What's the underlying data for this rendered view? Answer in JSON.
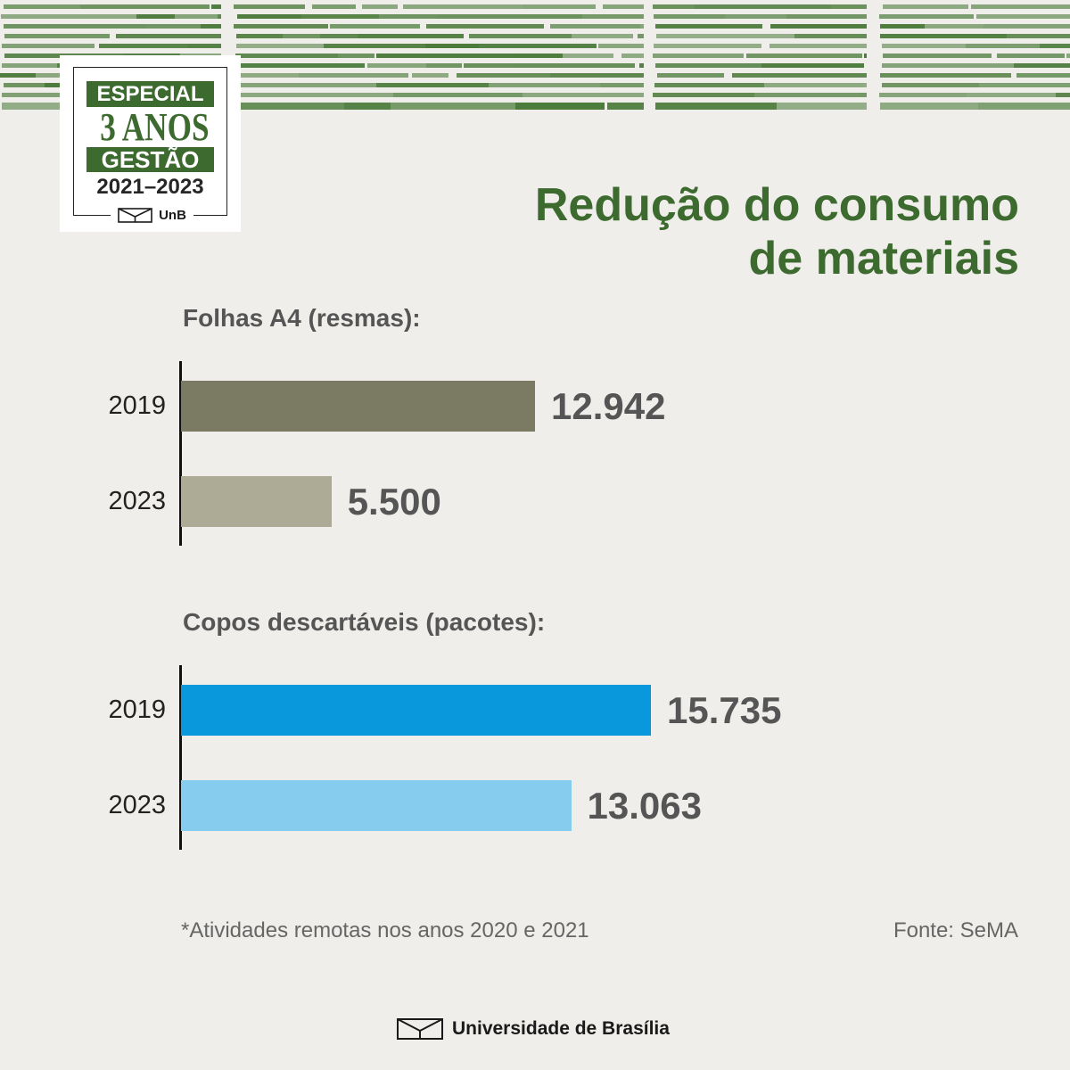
{
  "badge": {
    "label_top": "ESPECIAL",
    "label_big": "3 ANOS",
    "label_bottom": "GESTÃO",
    "years": "2021–2023",
    "logo_text": "UnB",
    "logo_icon": "unb-logo-icon"
  },
  "title": {
    "line1": "Redução do consumo",
    "line2": "de materiais"
  },
  "chart_data": [
    {
      "type": "bar",
      "orientation": "horizontal",
      "title": "Folhas A4 (resmas):",
      "categories": [
        "2019",
        "2023"
      ],
      "values": [
        12942,
        5500
      ],
      "value_labels": [
        "12.942",
        "5.500"
      ],
      "colors": [
        "#7b7a63",
        "#adab95"
      ],
      "grid": false,
      "legend": "none"
    },
    {
      "type": "bar",
      "orientation": "horizontal",
      "title": "Copos descartáveis (pacotes):",
      "categories": [
        "2019",
        "2023"
      ],
      "values": [
        15735,
        13063
      ],
      "value_labels": [
        "15.735",
        "13.063"
      ],
      "colors": [
        "#0a98dc",
        "#86ccee"
      ],
      "grid": false,
      "legend": "none"
    }
  ],
  "footnote": "*Atividades remotas nos anos 2020 e 2021",
  "source": "Fonte: SeMA",
  "footer": {
    "institution": "Universidade de Brasília",
    "icon": "unb-logo-icon"
  },
  "colors": {
    "brand_green": "#3d6b2f",
    "stripe_green": "#4a7a3a",
    "background": "#efeeea",
    "text_gray": "#555555"
  }
}
